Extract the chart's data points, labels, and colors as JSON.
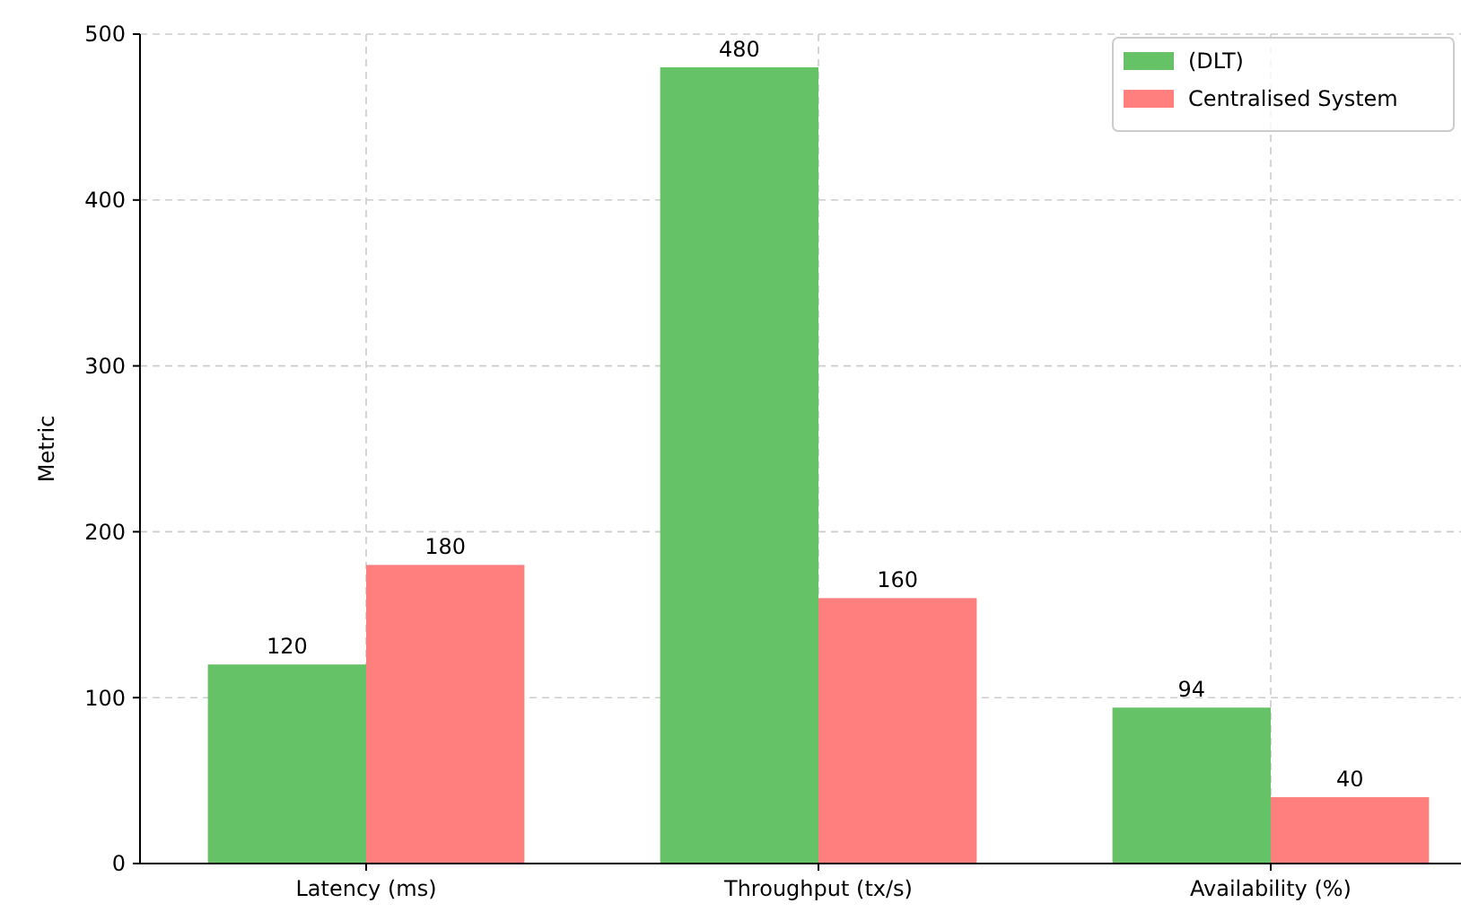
{
  "chart_data": {
    "type": "bar",
    "categories": [
      "Latency (ms)",
      "Throughput (tx/s)",
      "Availability (%)"
    ],
    "ylabel": "Metric",
    "ylim": [
      0,
      500
    ],
    "yticks": [
      0,
      100,
      200,
      300,
      400,
      500
    ],
    "grid": true,
    "legend": "top right",
    "data_labels": true,
    "series": [
      {
        "name": "(DLT)",
        "color": "#66c266",
        "values": [
          120,
          480,
          94
        ]
      },
      {
        "name": "Centralised System",
        "color": "#ff7f7f",
        "values": [
          180,
          160,
          40
        ]
      }
    ]
  }
}
